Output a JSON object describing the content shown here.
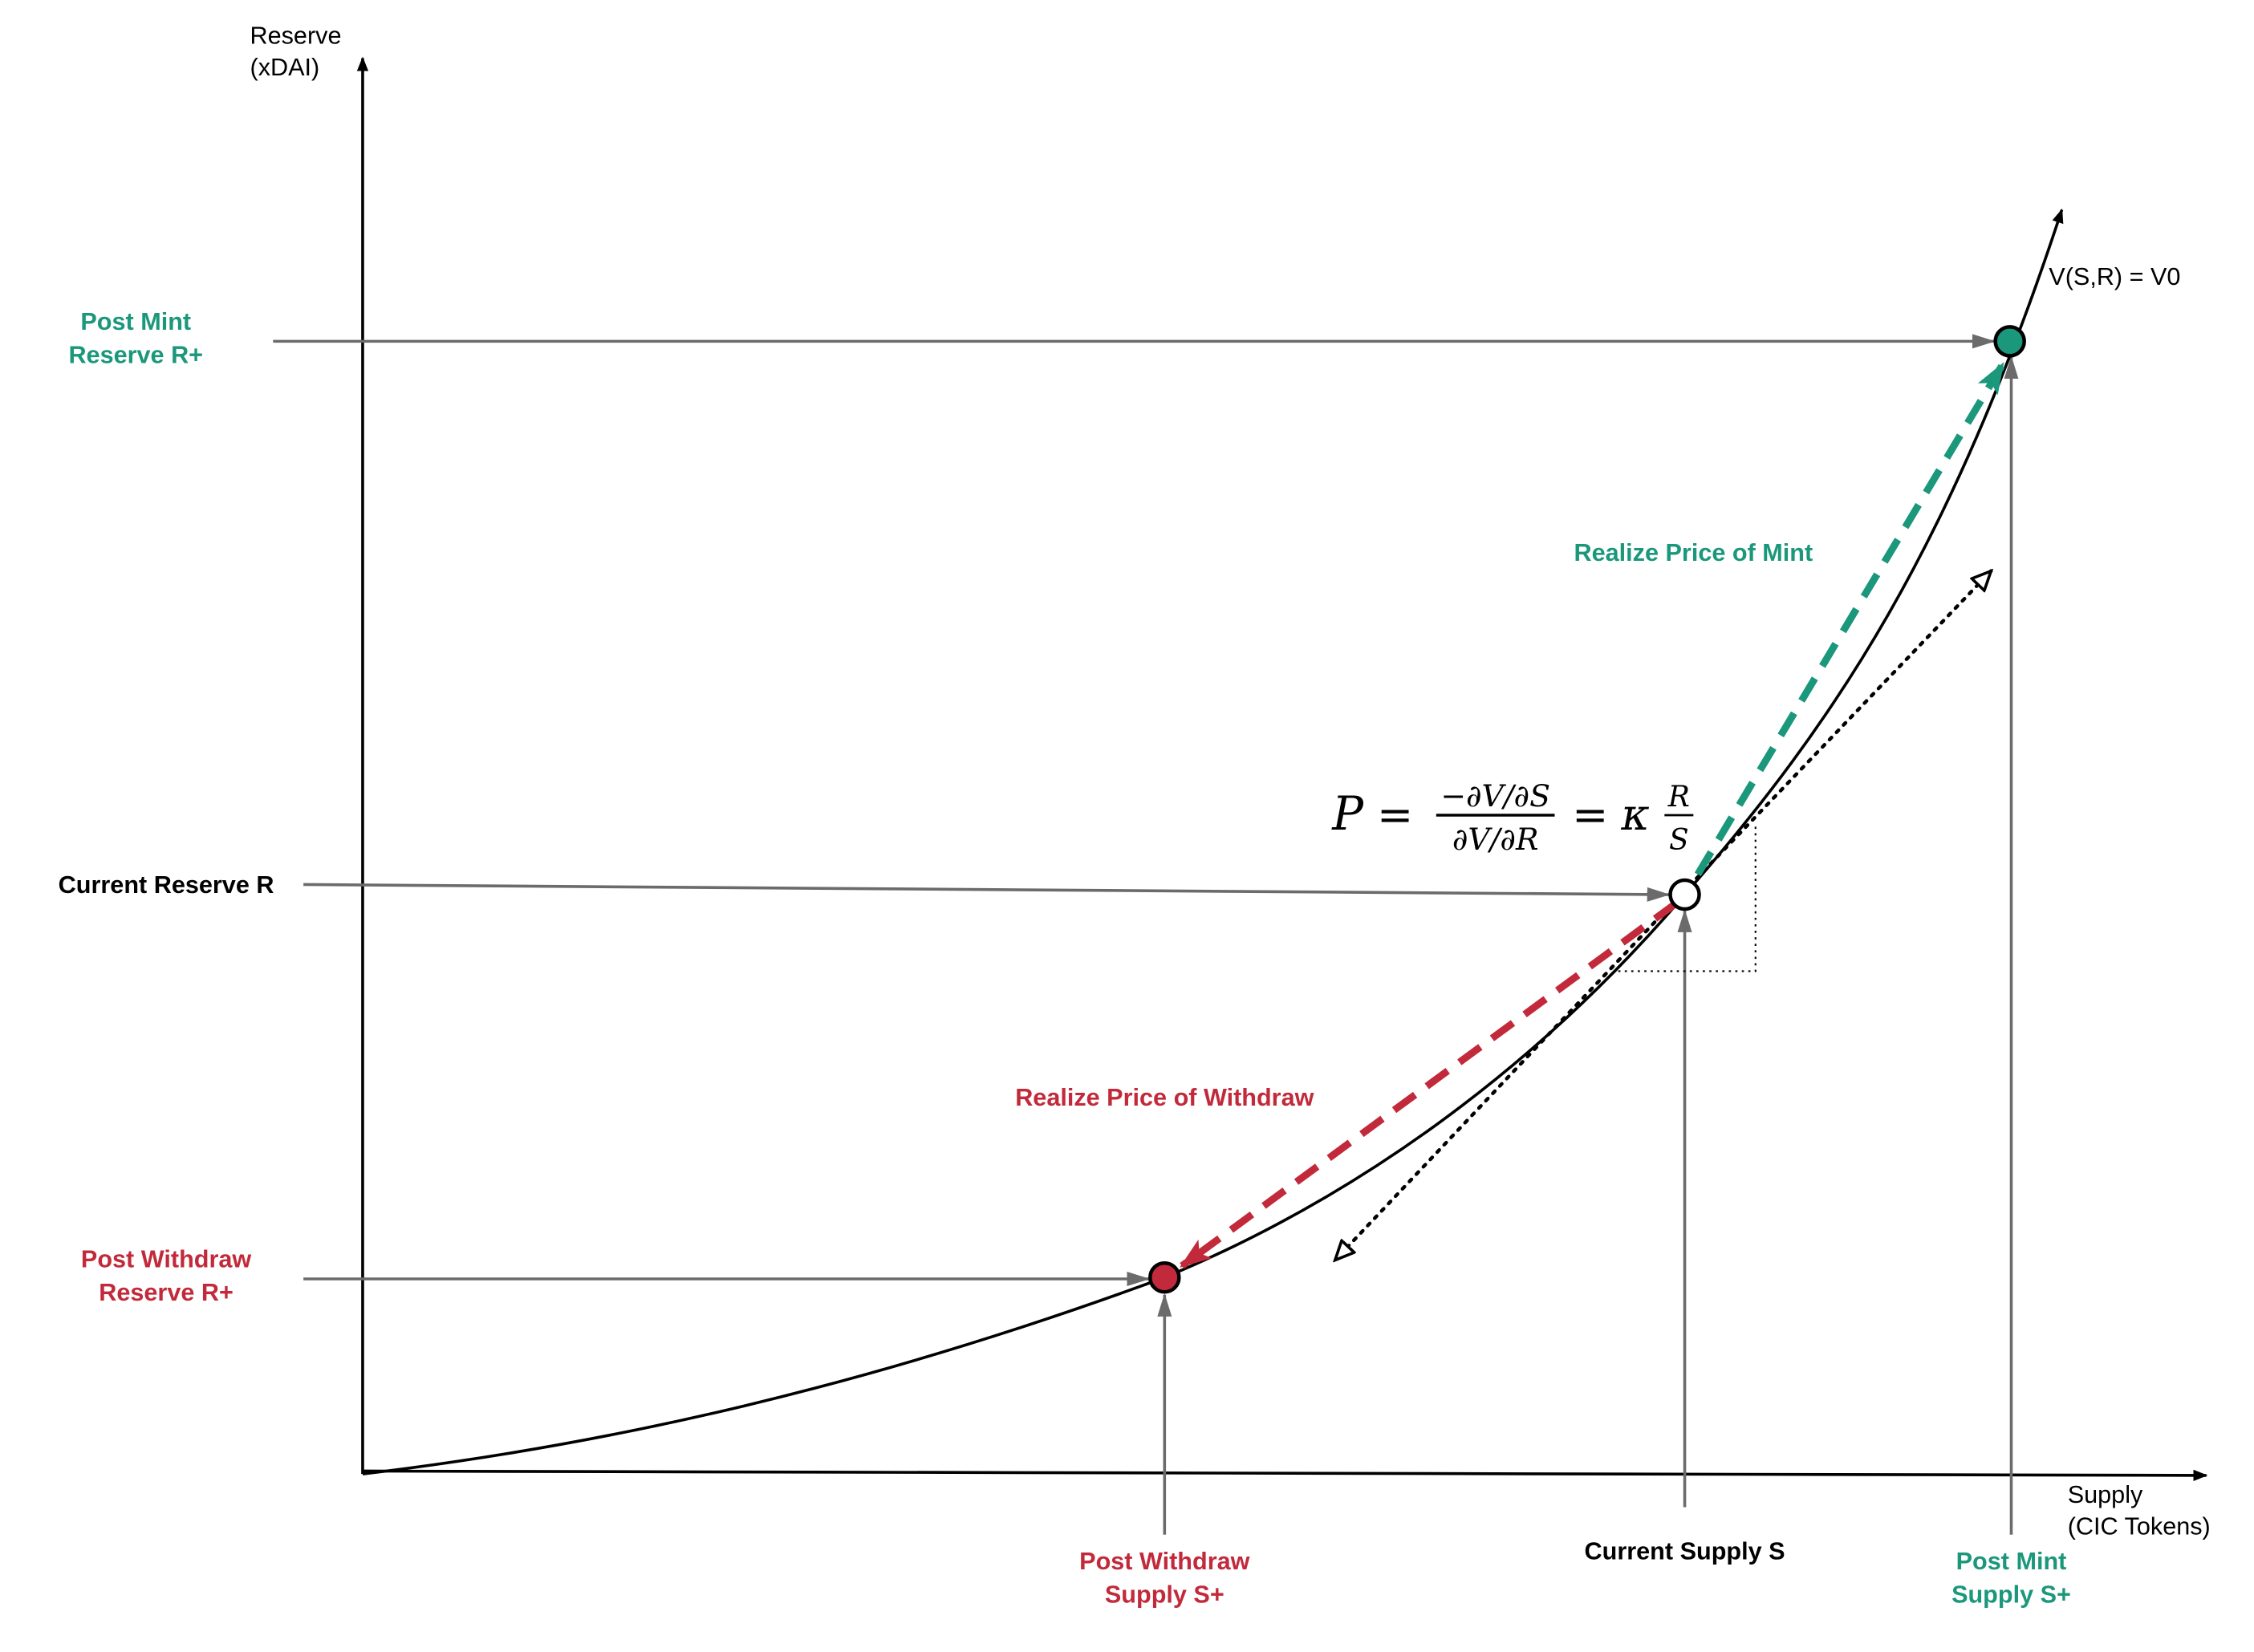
{
  "colors": {
    "mint": "#1b977b",
    "withdraw": "#c22a3b",
    "axis": "#000000",
    "guide": "#6b6b6b"
  },
  "axes": {
    "y_label": [
      "Reserve",
      "(xDAI)"
    ],
    "x_label": [
      "Supply",
      "(CIC Tokens)"
    ]
  },
  "curve_label": "V(S,R) = V0",
  "formula": {
    "lhs": "P",
    "eq": "=",
    "num": "−∂V/∂S",
    "den": "∂V/∂R",
    "eq2": "=",
    "kappa": "κ",
    "frac_num": "R",
    "frac_den": "S"
  },
  "labels": {
    "post_mint_reserve": [
      "Post Mint",
      "Reserve R+"
    ],
    "current_reserve": "Current Reserve R",
    "post_withdraw_reserve": [
      "Post Withdraw",
      "Reserve R+"
    ],
    "post_withdraw_supply": [
      "Post Withdraw",
      "Supply S+"
    ],
    "current_supply": "Current Supply S",
    "post_mint_supply": [
      "Post Mint",
      "Supply S+"
    ],
    "realize_mint": "Realize Price of Mint",
    "realize_withdraw": "Realize Price of Withdraw"
  }
}
